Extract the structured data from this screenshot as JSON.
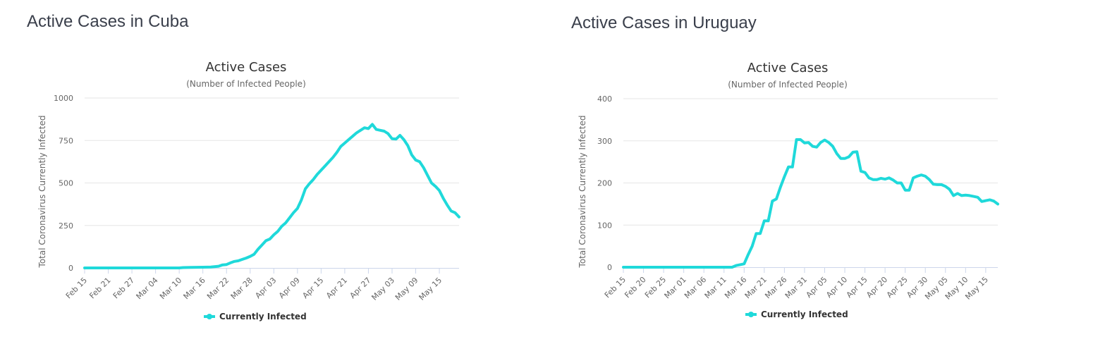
{
  "colors": {
    "series": "#1fd9da",
    "grid": "#e6e6e6",
    "axis": "#ccd6eb"
  },
  "charts": [
    {
      "heading": "Active Cases in Cuba",
      "chart_data": {
        "type": "line",
        "title": "Active Cases",
        "subtitle": "(Number of Infected People)",
        "ylabel": "Total Coronavirus Currently Infected",
        "xlabel": "",
        "ylim": [
          0,
          1000
        ],
        "yticks": [
          0,
          250,
          500,
          750,
          1000
        ],
        "x_start": "Feb 15",
        "x_tick_labels": [
          "Feb 15",
          "Feb 21",
          "Feb 27",
          "Mar 04",
          "Mar 10",
          "Mar 16",
          "Mar 22",
          "Mar 28",
          "Apr 03",
          "Apr 09",
          "Apr 15",
          "Apr 21",
          "Apr 27",
          "May 03",
          "May 09",
          "May 15"
        ],
        "x_tick_step": 6,
        "legend": "bottom-center",
        "grid": true,
        "series": [
          {
            "name": "Currently Infected",
            "points": [
              [
                "Feb 15",
                0
              ],
              [
                "Feb 20",
                0
              ],
              [
                "Feb 25",
                0
              ],
              [
                "Mar 01",
                0
              ],
              [
                "Mar 06",
                0
              ],
              [
                "Mar 10",
                0
              ],
              [
                "Mar 11",
                2
              ],
              [
                "Mar 13",
                3
              ],
              [
                "Mar 16",
                4
              ],
              [
                "Mar 18",
                5
              ],
              [
                "Mar 20",
                10
              ],
              [
                "Mar 21",
                18
              ],
              [
                "Mar 22",
                20
              ],
              [
                "Mar 23",
                30
              ],
              [
                "Mar 24",
                38
              ],
              [
                "Mar 25",
                42
              ],
              [
                "Mar 26",
                50
              ],
              [
                "Mar 27",
                58
              ],
              [
                "Mar 28",
                68
              ],
              [
                "Mar 29",
                80
              ],
              [
                "Mar 30",
                110
              ],
              [
                "Mar 31",
                135
              ],
              [
                "Apr 01",
                160
              ],
              [
                "Apr 02",
                170
              ],
              [
                "Apr 03",
                195
              ],
              [
                "Apr 04",
                215
              ],
              [
                "Apr 05",
                245
              ],
              [
                "Apr 06",
                265
              ],
              [
                "Apr 07",
                295
              ],
              [
                "Apr 08",
                325
              ],
              [
                "Apr 09",
                350
              ],
              [
                "Apr 10",
                400
              ],
              [
                "Apr 11",
                465
              ],
              [
                "Apr 12",
                495
              ],
              [
                "Apr 13",
                520
              ],
              [
                "Apr 14",
                550
              ],
              [
                "Apr 15",
                575
              ],
              [
                "Apr 16",
                600
              ],
              [
                "Apr 17",
                625
              ],
              [
                "Apr 18",
                650
              ],
              [
                "Apr 19",
                680
              ],
              [
                "Apr 20",
                715
              ],
              [
                "Apr 21",
                735
              ],
              [
                "Apr 22",
                755
              ],
              [
                "Apr 23",
                775
              ],
              [
                "Apr 24",
                795
              ],
              [
                "Apr 25",
                810
              ],
              [
                "Apr 26",
                825
              ],
              [
                "Apr 27",
                820
              ],
              [
                "Apr 28",
                845
              ],
              [
                "Apr 29",
                815
              ],
              [
                "Apr 30",
                810
              ],
              [
                "May 01",
                805
              ],
              [
                "May 02",
                790
              ],
              [
                "May 03",
                760
              ],
              [
                "May 04",
                758
              ],
              [
                "May 05",
                780
              ],
              [
                "May 06",
                755
              ],
              [
                "May 07",
                720
              ],
              [
                "May 08",
                665
              ],
              [
                "May 09",
                635
              ],
              [
                "May 10",
                625
              ],
              [
                "May 11",
                590
              ],
              [
                "May 12",
                545
              ],
              [
                "May 13",
                500
              ],
              [
                "May 14",
                480
              ],
              [
                "May 15",
                455
              ],
              [
                "May 16",
                410
              ],
              [
                "May 17",
                370
              ],
              [
                "May 18",
                335
              ],
              [
                "May 19",
                325
              ],
              [
                "May 20",
                300
              ]
            ]
          }
        ]
      }
    },
    {
      "heading": "Active Cases in Uruguay",
      "chart_data": {
        "type": "line",
        "title": "Active Cases",
        "subtitle": "(Number of Infected People)",
        "ylabel": "Total Coronavirus Currently Infected",
        "xlabel": "",
        "ylim": [
          0,
          400
        ],
        "yticks": [
          0,
          100,
          200,
          300,
          400
        ],
        "x_start": "Feb 15",
        "x_tick_labels": [
          "Feb 15",
          "Feb 20",
          "Feb 25",
          "Mar 01",
          "Mar 06",
          "Mar 11",
          "Mar 16",
          "Mar 21",
          "Mar 26",
          "Mar 31",
          "Apr 05",
          "Apr 10",
          "Apr 15",
          "Apr 20",
          "Apr 25",
          "Apr 30",
          "May 05",
          "May 10",
          "May 15"
        ],
        "x_tick_step": 5,
        "legend": "bottom-center",
        "grid": true,
        "series": [
          {
            "name": "Currently Infected",
            "points": [
              [
                "Feb 15",
                0
              ],
              [
                "Feb 20",
                0
              ],
              [
                "Feb 25",
                0
              ],
              [
                "Mar 01",
                0
              ],
              [
                "Mar 06",
                0
              ],
              [
                "Mar 11",
                0
              ],
              [
                "Mar 13",
                0
              ],
              [
                "Mar 14",
                4
              ],
              [
                "Mar 15",
                6
              ],
              [
                "Mar 16",
                8
              ],
              [
                "Mar 17",
                30
              ],
              [
                "Mar 18",
                50
              ],
              [
                "Mar 19",
                80
              ],
              [
                "Mar 20",
                80
              ],
              [
                "Mar 21",
                110
              ],
              [
                "Mar 22",
                110
              ],
              [
                "Mar 23",
                157
              ],
              [
                "Mar 24",
                162
              ],
              [
                "Mar 25",
                190
              ],
              [
                "Mar 26",
                215
              ],
              [
                "Mar 27",
                238
              ],
              [
                "Mar 28",
                238
              ],
              [
                "Mar 29",
                303
              ],
              [
                "Mar 30",
                303
              ],
              [
                "Mar 31",
                295
              ],
              [
                "Apr 01",
                296
              ],
              [
                "Apr 02",
                287
              ],
              [
                "Apr 03",
                285
              ],
              [
                "Apr 04",
                296
              ],
              [
                "Apr 05",
                302
              ],
              [
                "Apr 06",
                296
              ],
              [
                "Apr 07",
                287
              ],
              [
                "Apr 08",
                270
              ],
              [
                "Apr 09",
                258
              ],
              [
                "Apr 10",
                258
              ],
              [
                "Apr 11",
                262
              ],
              [
                "Apr 12",
                273
              ],
              [
                "Apr 13",
                274
              ],
              [
                "Apr 14",
                228
              ],
              [
                "Apr 15",
                225
              ],
              [
                "Apr 16",
                212
              ],
              [
                "Apr 17",
                208
              ],
              [
                "Apr 18",
                208
              ],
              [
                "Apr 19",
                211
              ],
              [
                "Apr 20",
                209
              ],
              [
                "Apr 21",
                212
              ],
              [
                "Apr 22",
                207
              ],
              [
                "Apr 23",
                200
              ],
              [
                "Apr 24",
                200
              ],
              [
                "Apr 25",
                183
              ],
              [
                "Apr 26",
                183
              ],
              [
                "Apr 27",
                212
              ],
              [
                "Apr 28",
                216
              ],
              [
                "Apr 29",
                219
              ],
              [
                "Apr 30",
                216
              ],
              [
                "May 01",
                208
              ],
              [
                "May 02",
                197
              ],
              [
                "May 03",
                196
              ],
              [
                "May 04",
                196
              ],
              [
                "May 05",
                192
              ],
              [
                "May 06",
                185
              ],
              [
                "May 07",
                170
              ],
              [
                "May 08",
                175
              ],
              [
                "May 09",
                170
              ],
              [
                "May 10",
                171
              ],
              [
                "May 11",
                170
              ],
              [
                "May 12",
                168
              ],
              [
                "May 13",
                166
              ],
              [
                "May 14",
                156
              ],
              [
                "May 15",
                158
              ],
              [
                "May 16",
                160
              ],
              [
                "May 17",
                157
              ],
              [
                "May 18",
                150
              ]
            ]
          }
        ]
      }
    }
  ]
}
